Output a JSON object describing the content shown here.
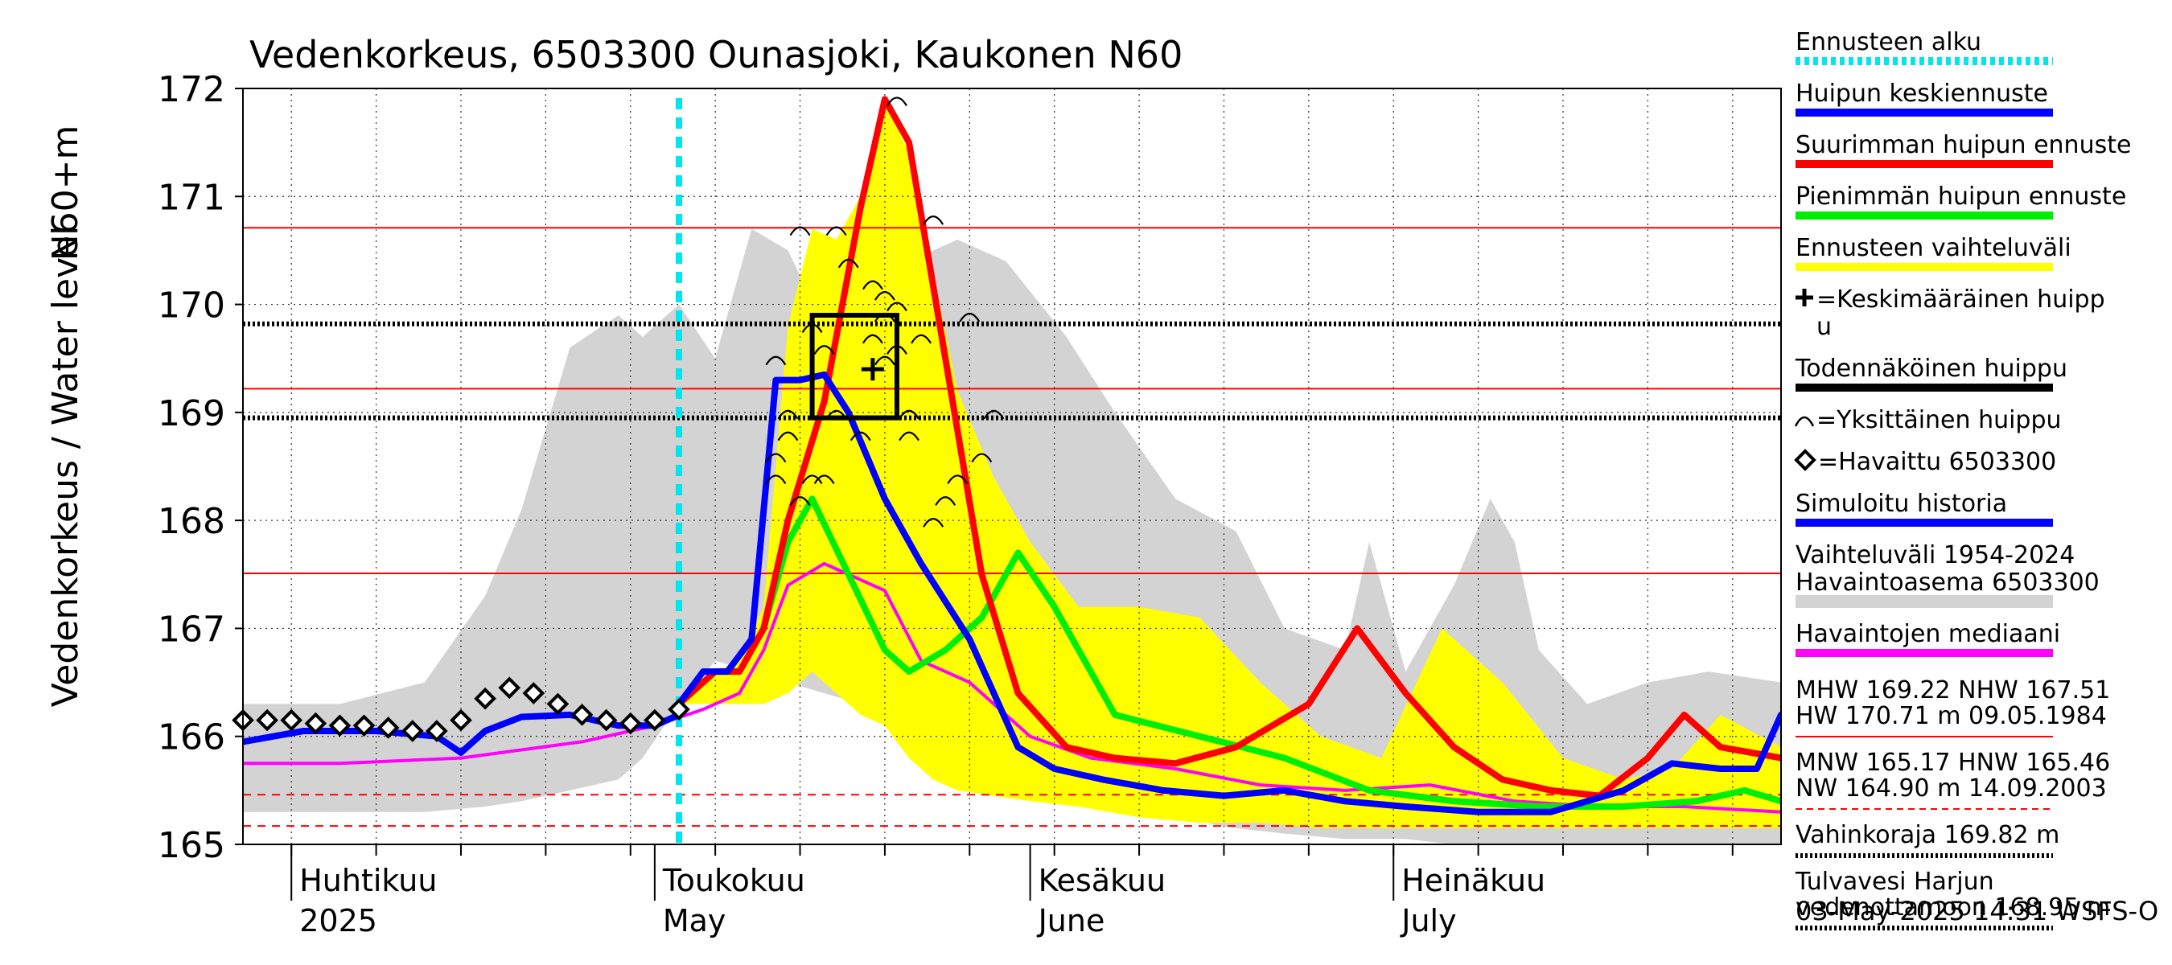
{
  "chart_data": {
    "type": "line",
    "title": "Vedenkorkeus, 6503300 Ounasjoki, Kaukonen N60",
    "ylabel_left": "Vedenkorkeus / Water level",
    "ylabel_right": "N60+m",
    "ylim": [
      165,
      172
    ],
    "yticks": [
      165,
      166,
      167,
      168,
      169,
      170,
      171,
      172
    ],
    "xlim": [
      "2025-03-28",
      "2025-08-02"
    ],
    "x_month_labels": [
      {
        "date": "2025-04-01",
        "fi": "Huhtikuu",
        "en": "2025"
      },
      {
        "date": "2025-05-01",
        "fi": "Toukokuu",
        "en": "May"
      },
      {
        "date": "2025-06-01",
        "fi": "Kesäkuu",
        "en": "June"
      },
      {
        "date": "2025-07-01",
        "fi": "Heinäkuu",
        "en": "July"
      }
    ],
    "grid": true,
    "forecast_start": "2025-05-03",
    "horizontal_lines": [
      {
        "value": 170.71,
        "color": "#ff0000",
        "style": "solid"
      },
      {
        "value": 169.22,
        "color": "#ff0000",
        "style": "solid"
      },
      {
        "value": 167.51,
        "color": "#ff0000",
        "style": "solid"
      },
      {
        "value": 165.46,
        "color": "#ff0000",
        "style": "dashed"
      },
      {
        "value": 165.17,
        "color": "#ff0000",
        "style": "dashed"
      },
      {
        "value": 169.82,
        "color": "#000000",
        "style": "dotted"
      },
      {
        "value": 168.95,
        "color": "#000000",
        "style": "dotted"
      }
    ],
    "history_range": {
      "x": [
        "2025-03-28",
        "2025-04-05",
        "2025-04-12",
        "2025-04-17",
        "2025-04-20",
        "2025-04-24",
        "2025-04-28",
        "2025-04-30",
        "2025-05-03",
        "2025-05-06",
        "2025-05-09",
        "2025-05-12",
        "2025-05-15",
        "2025-05-18",
        "2025-05-22",
        "2025-05-26",
        "2025-05-30",
        "2025-06-04",
        "2025-06-08",
        "2025-06-13",
        "2025-06-18",
        "2025-06-22",
        "2025-06-27",
        "2025-06-29",
        "2025-07-02",
        "2025-07-06",
        "2025-07-09",
        "2025-07-11",
        "2025-07-13",
        "2025-07-17",
        "2025-07-22",
        "2025-07-27",
        "2025-08-02"
      ],
      "upper": [
        166.3,
        166.3,
        166.5,
        167.3,
        168.1,
        169.6,
        169.9,
        169.7,
        170.0,
        169.5,
        170.7,
        170.5,
        169.8,
        169.6,
        170.4,
        170.6,
        170.4,
        169.7,
        169.0,
        168.2,
        167.9,
        167.0,
        166.8,
        167.8,
        166.6,
        167.4,
        168.2,
        167.8,
        166.8,
        166.3,
        166.5,
        166.6,
        166.5
      ],
      "lower": [
        165.3,
        165.3,
        165.3,
        165.35,
        165.4,
        165.5,
        165.6,
        165.8,
        166.3,
        166.7,
        166.6,
        166.5,
        166.4,
        166.3,
        166.2,
        166.0,
        165.8,
        165.6,
        165.4,
        165.25,
        165.15,
        165.1,
        165.05,
        165.05,
        165.05,
        165.0,
        165.0,
        165.0,
        165.0,
        164.95,
        164.95,
        164.95,
        164.95
      ]
    },
    "forecast_range": {
      "x": [
        "2025-05-03",
        "2025-05-06",
        "2025-05-08",
        "2025-05-10",
        "2025-05-12",
        "2025-05-14",
        "2025-05-16",
        "2025-05-18",
        "2025-05-20",
        "2025-05-22",
        "2025-05-24",
        "2025-05-26",
        "2025-05-29",
        "2025-06-01",
        "2025-06-05",
        "2025-06-10",
        "2025-06-15",
        "2025-06-20",
        "2025-06-25",
        "2025-06-30",
        "2025-07-05",
        "2025-07-10",
        "2025-07-15",
        "2025-07-20",
        "2025-07-24",
        "2025-07-28",
        "2025-08-02"
      ],
      "upper": [
        166.3,
        166.6,
        166.7,
        167.2,
        169.8,
        170.7,
        170.6,
        171.0,
        171.9,
        171.4,
        170.3,
        169.2,
        168.4,
        167.8,
        167.2,
        167.2,
        167.1,
        166.5,
        166.0,
        165.8,
        167.0,
        166.5,
        165.8,
        165.6,
        165.7,
        166.2,
        165.9
      ],
      "lower": [
        166.3,
        166.3,
        166.3,
        166.3,
        166.4,
        166.6,
        166.4,
        166.2,
        166.1,
        165.8,
        165.6,
        165.5,
        165.45,
        165.4,
        165.35,
        165.25,
        165.2,
        165.2,
        165.15,
        165.15,
        165.15,
        165.15,
        165.15,
        165.15,
        165.15,
        165.15,
        165.15
      ]
    },
    "series": [
      {
        "name": "Havaittu 6503300",
        "color": "#000000",
        "marker": "diamond",
        "x": [
          "2025-03-28",
          "2025-03-30",
          "2025-04-01",
          "2025-04-03",
          "2025-04-05",
          "2025-04-07",
          "2025-04-09",
          "2025-04-11",
          "2025-04-13",
          "2025-04-15",
          "2025-04-17",
          "2025-04-19",
          "2025-04-21",
          "2025-04-23",
          "2025-04-25",
          "2025-04-27",
          "2025-04-29",
          "2025-05-01",
          "2025-05-03"
        ],
        "y": [
          166.15,
          166.15,
          166.15,
          166.12,
          166.1,
          166.1,
          166.08,
          166.05,
          166.05,
          166.15,
          166.35,
          166.45,
          166.4,
          166.3,
          166.2,
          166.15,
          166.12,
          166.15,
          166.25
        ]
      },
      {
        "name": "Simuloitu historia",
        "color": "#0000ff",
        "width": 8,
        "x": [
          "2025-03-28",
          "2025-04-02",
          "2025-04-08",
          "2025-04-13",
          "2025-04-15",
          "2025-04-17",
          "2025-04-20",
          "2025-04-24",
          "2025-04-28",
          "2025-05-01",
          "2025-05-03"
        ],
        "y": [
          165.95,
          166.05,
          166.05,
          166.0,
          165.85,
          166.05,
          166.18,
          166.2,
          166.1,
          166.1,
          166.2
        ]
      },
      {
        "name": "Huipun keskiennuste",
        "color": "#0000ff",
        "width": 8,
        "x": [
          "2025-05-03",
          "2025-05-05",
          "2025-05-07",
          "2025-05-09",
          "2025-05-11",
          "2025-05-13",
          "2025-05-15",
          "2025-05-17",
          "2025-05-20",
          "2025-05-23",
          "2025-05-27",
          "2025-05-31",
          "2025-06-03",
          "2025-06-07",
          "2025-06-12",
          "2025-06-17",
          "2025-06-22",
          "2025-06-27",
          "2025-07-02",
          "2025-07-08",
          "2025-07-14",
          "2025-07-20",
          "2025-07-24",
          "2025-07-28",
          "2025-07-31",
          "2025-08-02"
        ],
        "y": [
          166.3,
          166.6,
          166.6,
          166.9,
          169.3,
          169.3,
          169.35,
          169.0,
          168.2,
          167.6,
          166.9,
          165.9,
          165.7,
          165.6,
          165.5,
          165.45,
          165.5,
          165.4,
          165.35,
          165.3,
          165.3,
          165.5,
          165.75,
          165.7,
          165.7,
          166.2
        ]
      },
      {
        "name": "Suurimman huipun ennuste",
        "color": "#ff0000",
        "width": 8,
        "x": [
          "2025-05-03",
          "2025-05-06",
          "2025-05-08",
          "2025-05-10",
          "2025-05-12",
          "2025-05-15",
          "2025-05-18",
          "2025-05-20",
          "2025-05-22",
          "2025-05-25",
          "2025-05-28",
          "2025-05-31",
          "2025-06-04",
          "2025-06-08",
          "2025-06-13",
          "2025-06-18",
          "2025-06-24",
          "2025-06-28",
          "2025-07-02",
          "2025-07-06",
          "2025-07-10",
          "2025-07-14",
          "2025-07-18",
          "2025-07-22",
          "2025-07-25",
          "2025-07-28",
          "2025-08-02"
        ],
        "y": [
          166.3,
          166.6,
          166.6,
          167.0,
          168.0,
          169.1,
          170.9,
          171.9,
          171.5,
          169.5,
          167.5,
          166.4,
          165.9,
          165.8,
          165.75,
          165.9,
          166.3,
          167.0,
          166.4,
          165.9,
          165.6,
          165.5,
          165.45,
          165.8,
          166.2,
          165.9,
          165.8
        ]
      },
      {
        "name": "Pienimmän huipun ennuste",
        "color": "#00ee00",
        "width": 8,
        "x": [
          "2025-05-03",
          "2025-05-06",
          "2025-05-08",
          "2025-05-10",
          "2025-05-12",
          "2025-05-14",
          "2025-05-17",
          "2025-05-20",
          "2025-05-22",
          "2025-05-25",
          "2025-05-28",
          "2025-05-31",
          "2025-06-03",
          "2025-06-08",
          "2025-06-15",
          "2025-06-22",
          "2025-06-29",
          "2025-07-06",
          "2025-07-13",
          "2025-07-20",
          "2025-07-26",
          "2025-07-30",
          "2025-08-02"
        ],
        "y": [
          166.3,
          166.6,
          166.6,
          167.0,
          167.8,
          168.2,
          167.5,
          166.8,
          166.6,
          166.8,
          167.1,
          167.7,
          167.2,
          166.2,
          166.0,
          165.8,
          165.5,
          165.4,
          165.35,
          165.35,
          165.4,
          165.5,
          165.4
        ]
      },
      {
        "name": "Havaintojen mediaani",
        "color": "#ff00ff",
        "width": 4,
        "x": [
          "2025-03-28",
          "2025-04-05",
          "2025-04-15",
          "2025-04-25",
          "2025-05-01",
          "2025-05-05",
          "2025-05-08",
          "2025-05-10",
          "2025-05-12",
          "2025-05-15",
          "2025-05-17",
          "2025-05-20",
          "2025-05-23",
          "2025-05-27",
          "2025-06-01",
          "2025-06-06",
          "2025-06-13",
          "2025-06-20",
          "2025-06-27",
          "2025-07-04",
          "2025-07-11",
          "2025-07-18",
          "2025-07-25",
          "2025-08-02"
        ],
        "y": [
          165.75,
          165.75,
          165.8,
          165.95,
          166.1,
          166.25,
          166.4,
          166.8,
          167.4,
          167.6,
          167.5,
          167.35,
          166.7,
          166.5,
          166.0,
          165.8,
          165.7,
          165.55,
          165.5,
          165.55,
          165.4,
          165.35,
          165.35,
          165.3
        ]
      }
    ],
    "individual_peaks": [
      {
        "x": "2025-05-11",
        "y": 169.5
      },
      {
        "x": "2025-05-12",
        "y": 169.0
      },
      {
        "x": "2025-05-11",
        "y": 168.4
      },
      {
        "x": "2025-05-11",
        "y": 168.6
      },
      {
        "x": "2025-05-12",
        "y": 168.8
      },
      {
        "x": "2025-05-13",
        "y": 168.2
      },
      {
        "x": "2025-05-14",
        "y": 168.4
      },
      {
        "x": "2025-05-15",
        "y": 168.4
      },
      {
        "x": "2025-05-13",
        "y": 170.7
      },
      {
        "x": "2025-05-14",
        "y": 169.8
      },
      {
        "x": "2025-05-15",
        "y": 169.6
      },
      {
        "x": "2025-05-16",
        "y": 170.7
      },
      {
        "x": "2025-05-17",
        "y": 170.4
      },
      {
        "x": "2025-05-16",
        "y": 169.0
      },
      {
        "x": "2025-05-18",
        "y": 168.8
      },
      {
        "x": "2025-05-19",
        "y": 169.7
      },
      {
        "x": "2025-05-19",
        "y": 170.2
      },
      {
        "x": "2025-05-20",
        "y": 169.9
      },
      {
        "x": "2025-05-20",
        "y": 170.1
      },
      {
        "x": "2025-05-21",
        "y": 170.0
      },
      {
        "x": "2025-05-21",
        "y": 171.9
      },
      {
        "x": "2025-05-20",
        "y": 169.5
      },
      {
        "x": "2025-05-21",
        "y": 169.6
      },
      {
        "x": "2025-05-22",
        "y": 169.0
      },
      {
        "x": "2025-05-22",
        "y": 168.8
      },
      {
        "x": "2025-05-23",
        "y": 169.7
      },
      {
        "x": "2025-05-22",
        "y": 169.0
      },
      {
        "x": "2025-05-24",
        "y": 170.8
      },
      {
        "x": "2025-05-25",
        "y": 168.2
      },
      {
        "x": "2025-05-26",
        "y": 168.4
      },
      {
        "x": "2025-05-27",
        "y": 169.9
      },
      {
        "x": "2025-05-28",
        "y": 168.6
      },
      {
        "x": "2025-05-29",
        "y": 169.0
      },
      {
        "x": "2025-05-24",
        "y": 168.0
      }
    ],
    "mean_peak": {
      "x": "2025-05-19",
      "y": 169.4
    },
    "likely_peak_box": {
      "x0": "2025-05-14",
      "x1": "2025-05-21",
      "y0": 168.95,
      "y1": 169.9
    },
    "legend": {
      "placement": "right",
      "items": [
        {
          "label": "Ennusteen alku",
          "color": "#00e5ee",
          "style": "dotted"
        },
        {
          "label": "Huipun keskiennuste",
          "color": "#0000ff",
          "style": "solid"
        },
        {
          "label": "Suurimman huipun ennuste",
          "color": "#ff0000",
          "style": "solid"
        },
        {
          "label": "Pienimmän huipun ennuste",
          "color": "#00ee00",
          "style": "solid"
        },
        {
          "label": "Ennusteen vaihteluväli",
          "color": "#ffff00",
          "style": "solid"
        },
        {
          "label": "=Keskimääräinen huipp",
          "label2": "u",
          "color": "#000000",
          "style": "plus"
        },
        {
          "label": "Todennäköinen huippu",
          "color": "#000000",
          "style": "solid"
        },
        {
          "label": "=Yksittäinen huippu",
          "color": "#000000",
          "style": "arc"
        },
        {
          "label": "=Havaittu 6503300",
          "color": "#000000",
          "style": "diamond"
        },
        {
          "label": "Simuloitu historia",
          "color": "#0000ff",
          "style": "solid"
        },
        {
          "label": "Vaihteluväli 1954-2024",
          "label2": " Havaintoasema 6503300",
          "color": "#d3d3d3",
          "style": "solid"
        },
        {
          "label": "Havaintojen mediaani",
          "color": "#ff00ff",
          "style": "solid"
        }
      ],
      "stats": [
        {
          "line1": "MHW 169.22 NHW 167.51",
          "line2": "HW 170.71 m 09.05.1984",
          "color": "#ff0000",
          "style": "solid"
        },
        {
          "line1": "MNW 165.17 HNW 165.46",
          "line2": "NW 164.90 m 14.09.2003",
          "color": "#ff0000",
          "style": "dashed"
        },
        {
          "line1": "Vahinkoraja 169.82 m",
          "color": "#000000",
          "style": "dotted"
        },
        {
          "line1": "Tulvavesi Harjun",
          "line2": "vedenottamoon 168.95 m",
          "color": "#000000",
          "style": "dotted"
        }
      ]
    },
    "footer": "03-May-2025 14:31 WSFS-O"
  }
}
